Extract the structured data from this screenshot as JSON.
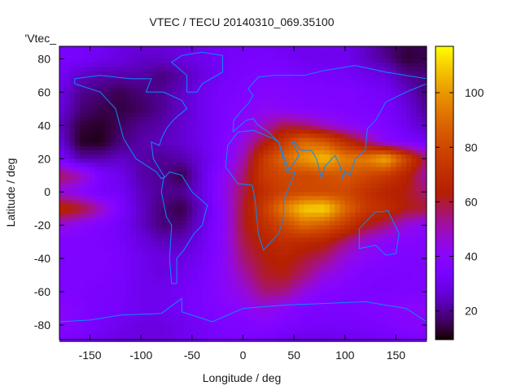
{
  "chart_data": {
    "type": "heatmap",
    "title": "VTEC / TECU 20140310_069.35100",
    "xlabel": "Longitude / deg",
    "ylabel": "Latitude / deg",
    "legend_entry": "'Vtec_",
    "legend_placement": "top-left",
    "xlim": [
      -180,
      180
    ],
    "ylim": [
      -88.75,
      87.5
    ],
    "xticks": [
      -150,
      -100,
      -50,
      0,
      50,
      100,
      150
    ],
    "yticks": [
      -80,
      -60,
      -40,
      -20,
      0,
      20,
      40,
      60,
      80
    ],
    "colorbar": {
      "range": [
        9.5,
        117
      ],
      "ticks": [
        20,
        40,
        60,
        80,
        100
      ],
      "palette": "black-purple-red-orange-yellow"
    },
    "coastline_color": "#0a8cff",
    "grid_lon": [
      -180,
      -160,
      -140,
      -120,
      -100,
      -80,
      -60,
      -40,
      -20,
      0,
      20,
      40,
      60,
      80,
      100,
      120,
      140,
      160,
      180
    ],
    "grid_lat": [
      90,
      80,
      70,
      60,
      50,
      40,
      30,
      20,
      10,
      0,
      -10,
      -20,
      -30,
      -40,
      -50,
      -60,
      -70,
      -80,
      -90
    ],
    "values": [
      [
        33,
        33,
        32,
        28,
        28,
        28,
        28,
        30,
        32,
        33,
        32,
        30,
        30,
        32,
        30,
        25,
        18,
        15,
        15
      ],
      [
        35,
        33,
        30,
        28,
        25,
        25,
        28,
        30,
        32,
        33,
        34,
        33,
        30,
        30,
        30,
        25,
        20,
        13,
        15
      ],
      [
        32,
        25,
        22,
        22,
        22,
        18,
        22,
        28,
        32,
        35,
        36,
        36,
        34,
        34,
        33,
        30,
        28,
        20,
        18
      ],
      [
        30,
        20,
        18,
        15,
        18,
        20,
        25,
        30,
        34,
        36,
        38,
        38,
        36,
        36,
        36,
        34,
        32,
        25,
        18
      ],
      [
        28,
        18,
        15,
        14,
        16,
        20,
        25,
        30,
        35,
        38,
        42,
        40,
        38,
        37,
        36,
        35,
        34,
        28,
        20
      ],
      [
        25,
        14,
        12,
        16,
        20,
        22,
        26,
        30,
        35,
        40,
        48,
        58,
        55,
        48,
        42,
        38,
        36,
        30,
        24
      ],
      [
        28,
        12,
        11,
        18,
        22,
        24,
        26,
        30,
        36,
        45,
        60,
        75,
        90,
        85,
        70,
        55,
        40,
        35,
        32
      ],
      [
        35,
        22,
        22,
        25,
        22,
        20,
        22,
        28,
        36,
        50,
        75,
        90,
        100,
        108,
        95,
        95,
        105,
        80,
        55
      ],
      [
        58,
        50,
        35,
        30,
        22,
        20,
        14,
        28,
        40,
        55,
        75,
        80,
        80,
        82,
        85,
        80,
        75,
        65,
        50
      ],
      [
        45,
        40,
        33,
        32,
        24,
        20,
        20,
        28,
        42,
        58,
        70,
        78,
        80,
        80,
        80,
        72,
        65,
        62,
        55
      ],
      [
        68,
        62,
        50,
        35,
        25,
        18,
        14,
        26,
        40,
        60,
        75,
        95,
        110,
        112,
        90,
        75,
        70,
        62,
        60
      ],
      [
        45,
        40,
        36,
        32,
        25,
        18,
        18,
        28,
        40,
        60,
        70,
        80,
        90,
        85,
        75,
        62,
        55,
        45,
        40
      ],
      [
        36,
        36,
        35,
        33,
        28,
        24,
        24,
        30,
        40,
        58,
        65,
        70,
        68,
        65,
        55,
        45,
        40,
        38,
        38
      ],
      [
        36,
        36,
        36,
        34,
        30,
        28,
        28,
        32,
        40,
        55,
        62,
        65,
        60,
        55,
        45,
        40,
        38,
        36,
        36
      ],
      [
        36,
        36,
        35,
        34,
        30,
        28,
        30,
        34,
        40,
        50,
        60,
        62,
        55,
        45,
        40,
        36,
        35,
        35,
        36
      ],
      [
        36,
        35,
        34,
        33,
        30,
        30,
        32,
        35,
        40,
        45,
        55,
        55,
        45,
        38,
        36,
        35,
        35,
        36,
        36
      ],
      [
        40,
        36,
        34,
        33,
        30,
        30,
        32,
        35,
        38,
        40,
        45,
        40,
        36,
        35,
        35,
        36,
        38,
        40,
        40
      ],
      [
        40,
        36,
        33,
        30,
        28,
        28,
        30,
        32,
        35,
        36,
        38,
        36,
        34,
        33,
        33,
        34,
        35,
        38,
        40
      ],
      [
        35,
        33,
        30,
        28,
        28,
        28,
        30,
        32,
        34,
        35,
        33,
        30,
        28,
        28,
        30,
        30,
        32,
        34,
        35
      ]
    ]
  }
}
